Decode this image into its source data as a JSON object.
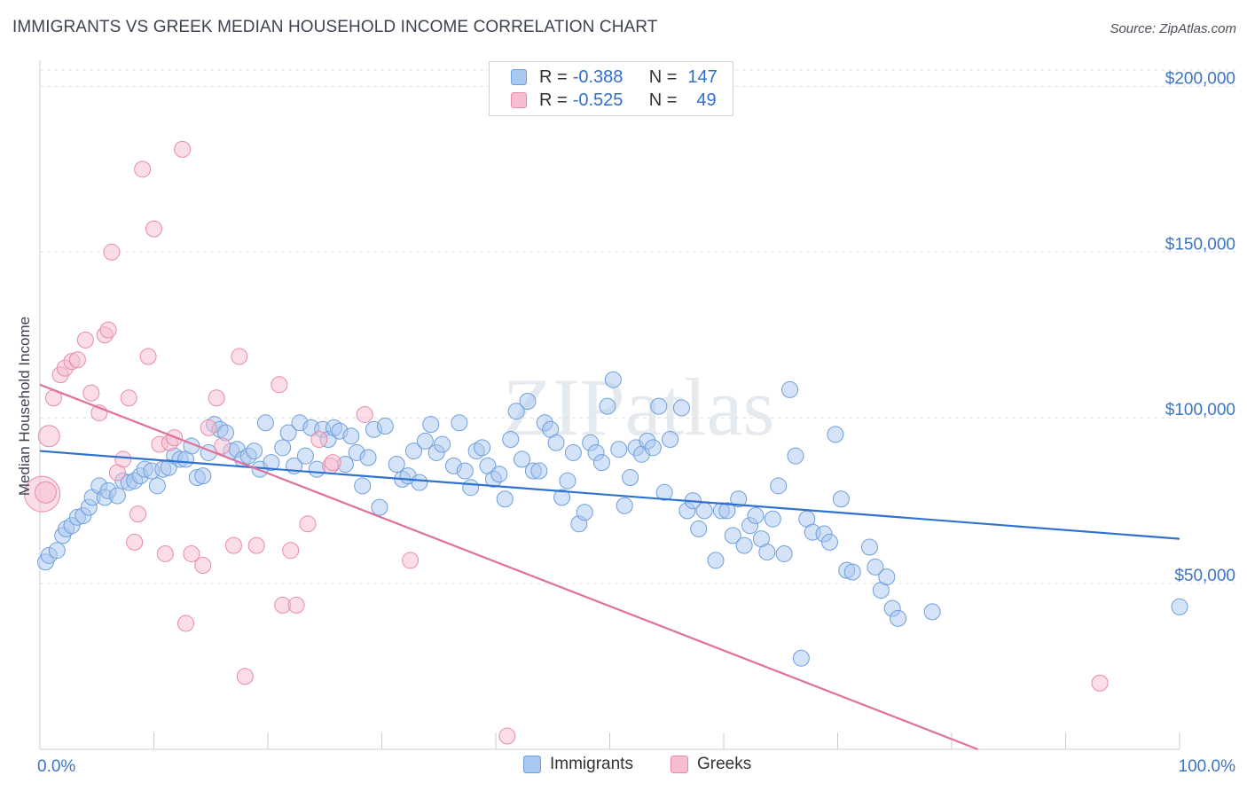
{
  "title": "IMMIGRANTS VS GREEK MEDIAN HOUSEHOLD INCOME CORRELATION CHART",
  "source": "Source: ZipAtlas.com",
  "watermark": "ZIPatlas",
  "legend": {
    "rows": [
      {
        "r_label": "R =",
        "r_value": "-0.388",
        "n_label": "N =",
        "n_value": "147"
      },
      {
        "r_label": "R =",
        "r_value": "-0.525",
        "n_label": "N =",
        "n_value": "49"
      }
    ]
  },
  "colors": {
    "immigrants_fill": "#a9c8f0",
    "immigrants_stroke": "#6f9fdc",
    "immigrants_line": "#2f72d2",
    "greeks_fill": "#f6bcd0",
    "greeks_stroke": "#e98aab",
    "greeks_line": "#e2709a",
    "tick_text": "#3b74c7",
    "grid": "#dde0e5"
  },
  "chart_data": {
    "type": "scatter",
    "title": "IMMIGRANTS VS GREEK MEDIAN HOUSEHOLD INCOME CORRELATION CHART",
    "xlabel": "",
    "ylabel": "Median Household Income",
    "xlim": [
      0,
      100
    ],
    "ylim": [
      0,
      210000
    ],
    "x_tick_labels": [
      "0.0%",
      "100.0%"
    ],
    "y_ticks": [
      50000,
      100000,
      150000,
      200000
    ],
    "y_tick_labels": [
      "$50,000",
      "$100,000",
      "$150,000",
      "$200,000"
    ],
    "grid": true,
    "legend_position": "top-center",
    "series": [
      {
        "name": "Immigrants",
        "r": -0.388,
        "n": 147,
        "trend": [
          [
            0,
            90000
          ],
          [
            100,
            63500
          ]
        ],
        "points": [
          [
            0.5,
            56500
          ],
          [
            0.8,
            58500
          ],
          [
            1.5,
            60000
          ],
          [
            2,
            64500
          ],
          [
            2.3,
            66500
          ],
          [
            2.8,
            67500
          ],
          [
            3.3,
            70000
          ],
          [
            3.8,
            70500
          ],
          [
            4.3,
            73000
          ],
          [
            4.6,
            76000
          ],
          [
            5.2,
            79500
          ],
          [
            5.7,
            76000
          ],
          [
            6,
            78000
          ],
          [
            6.8,
            76500
          ],
          [
            7.3,
            81000
          ],
          [
            7.8,
            80500
          ],
          [
            8.3,
            81000
          ],
          [
            8.8,
            82500
          ],
          [
            9.2,
            84500
          ],
          [
            9.8,
            84000
          ],
          [
            10.3,
            79500
          ],
          [
            10.8,
            84500
          ],
          [
            11.3,
            85000
          ],
          [
            11.8,
            88500
          ],
          [
            12.3,
            87500
          ],
          [
            12.8,
            87500
          ],
          [
            13.3,
            91500
          ],
          [
            13.8,
            82000
          ],
          [
            14.3,
            82500
          ],
          [
            14.8,
            89500
          ],
          [
            15.3,
            98000
          ],
          [
            15.8,
            96500
          ],
          [
            16.3,
            95500
          ],
          [
            16.8,
            90000
          ],
          [
            17.3,
            90500
          ],
          [
            17.8,
            87500
          ],
          [
            18.3,
            88500
          ],
          [
            18.8,
            90000
          ],
          [
            19.3,
            84500
          ],
          [
            19.8,
            98500
          ],
          [
            20.3,
            86500
          ],
          [
            21.3,
            91000
          ],
          [
            21.8,
            95500
          ],
          [
            22.3,
            85500
          ],
          [
            22.8,
            98500
          ],
          [
            23.3,
            88500
          ],
          [
            23.8,
            97000
          ],
          [
            24.3,
            84500
          ],
          [
            24.8,
            96500
          ],
          [
            25.3,
            93500
          ],
          [
            25.8,
            97000
          ],
          [
            26.3,
            96000
          ],
          [
            26.8,
            86000
          ],
          [
            27.3,
            94500
          ],
          [
            27.8,
            89500
          ],
          [
            28.3,
            79500
          ],
          [
            28.8,
            88000
          ],
          [
            29.3,
            96500
          ],
          [
            29.8,
            73000
          ],
          [
            30.3,
            97500
          ],
          [
            31.3,
            86000
          ],
          [
            31.8,
            81500
          ],
          [
            32.3,
            82500
          ],
          [
            32.8,
            90000
          ],
          [
            33.3,
            80500
          ],
          [
            33.8,
            93000
          ],
          [
            34.3,
            98000
          ],
          [
            34.8,
            89500
          ],
          [
            35.3,
            92000
          ],
          [
            36.3,
            85500
          ],
          [
            36.8,
            98500
          ],
          [
            37.3,
            84000
          ],
          [
            37.8,
            79000
          ],
          [
            38.3,
            90000
          ],
          [
            38.8,
            91000
          ],
          [
            39.3,
            85500
          ],
          [
            39.8,
            81500
          ],
          [
            40.3,
            83000
          ],
          [
            40.8,
            75500
          ],
          [
            41.3,
            93500
          ],
          [
            41.8,
            102000
          ],
          [
            42.3,
            87500
          ],
          [
            42.8,
            105000
          ],
          [
            43.3,
            84000
          ],
          [
            43.8,
            84000
          ],
          [
            44.3,
            98500
          ],
          [
            44.8,
            96500
          ],
          [
            45.3,
            92500
          ],
          [
            45.8,
            76000
          ],
          [
            46.3,
            81000
          ],
          [
            46.8,
            89500
          ],
          [
            47.3,
            68000
          ],
          [
            47.8,
            71500
          ],
          [
            48.3,
            92500
          ],
          [
            48.8,
            89500
          ],
          [
            49.3,
            86500
          ],
          [
            49.8,
            103500
          ],
          [
            50.3,
            111500
          ],
          [
            50.8,
            90500
          ],
          [
            51.3,
            73500
          ],
          [
            51.8,
            82000
          ],
          [
            52.3,
            91000
          ],
          [
            52.8,
            89000
          ],
          [
            53.3,
            93000
          ],
          [
            53.8,
            91000
          ],
          [
            54.3,
            103500
          ],
          [
            54.8,
            77500
          ],
          [
            55.3,
            93500
          ],
          [
            56.3,
            103000
          ],
          [
            56.8,
            72000
          ],
          [
            57.3,
            75000
          ],
          [
            57.8,
            66500
          ],
          [
            58.3,
            72000
          ],
          [
            59.3,
            57000
          ],
          [
            59.8,
            72000
          ],
          [
            60.3,
            72000
          ],
          [
            60.8,
            64500
          ],
          [
            61.3,
            75500
          ],
          [
            61.8,
            61500
          ],
          [
            62.3,
            67500
          ],
          [
            62.8,
            70500
          ],
          [
            63.3,
            63500
          ],
          [
            63.8,
            59500
          ],
          [
            64.3,
            69500
          ],
          [
            64.8,
            79500
          ],
          [
            65.3,
            59000
          ],
          [
            65.8,
            108500
          ],
          [
            66.3,
            88500
          ],
          [
            66.8,
            27500
          ],
          [
            67.3,
            69500
          ],
          [
            67.8,
            65500
          ],
          [
            68.8,
            65000
          ],
          [
            69.3,
            62500
          ],
          [
            69.8,
            95000
          ],
          [
            70.3,
            75500
          ],
          [
            70.8,
            54000
          ],
          [
            71.3,
            53500
          ],
          [
            72.8,
            61000
          ],
          [
            73.3,
            55000
          ],
          [
            73.8,
            48000
          ],
          [
            74.3,
            52000
          ],
          [
            74.8,
            42500
          ],
          [
            75.3,
            39500
          ],
          [
            78.3,
            41500
          ],
          [
            100,
            43000
          ]
        ]
      },
      {
        "name": "Greeks",
        "r": -0.525,
        "n": 49,
        "trend": [
          [
            0,
            110000
          ],
          [
            82.3,
            0
          ]
        ],
        "points": [
          [
            0.2,
            77000
          ],
          [
            0.8,
            94500
          ],
          [
            1.2,
            106000
          ],
          [
            1.8,
            113000
          ],
          [
            2.2,
            115000
          ],
          [
            2.8,
            117000
          ],
          [
            3.3,
            117500
          ],
          [
            4,
            123500
          ],
          [
            4.5,
            107500
          ],
          [
            5.2,
            101500
          ],
          [
            5.7,
            125000
          ],
          [
            6,
            126500
          ],
          [
            6.3,
            150000
          ],
          [
            6.8,
            83500
          ],
          [
            7.3,
            87500
          ],
          [
            7.8,
            106000
          ],
          [
            8.3,
            62500
          ],
          [
            8.6,
            71000
          ],
          [
            9,
            175000
          ],
          [
            9.5,
            118500
          ],
          [
            10,
            157000
          ],
          [
            10.5,
            92000
          ],
          [
            11,
            59000
          ],
          [
            11.4,
            92500
          ],
          [
            11.8,
            94000
          ],
          [
            12.5,
            181000
          ],
          [
            12.8,
            38000
          ],
          [
            13.3,
            59000
          ],
          [
            14.3,
            55500
          ],
          [
            14.8,
            97000
          ],
          [
            15.5,
            106000
          ],
          [
            16,
            91500
          ],
          [
            17,
            61500
          ],
          [
            17.5,
            118500
          ],
          [
            18,
            22000
          ],
          [
            19,
            61500
          ],
          [
            21,
            110000
          ],
          [
            21.3,
            43500
          ],
          [
            22,
            60000
          ],
          [
            22.5,
            43500
          ],
          [
            23.5,
            68000
          ],
          [
            24.5,
            93500
          ],
          [
            25.5,
            85500
          ],
          [
            25.7,
            86500
          ],
          [
            28.5,
            101000
          ],
          [
            32.5,
            57000
          ],
          [
            41,
            4000
          ],
          [
            93,
            20000
          ],
          [
            0.5,
            77500
          ]
        ]
      }
    ]
  },
  "bottom_legend": [
    {
      "label": "Immigrants"
    },
    {
      "label": "Greeks"
    }
  ]
}
